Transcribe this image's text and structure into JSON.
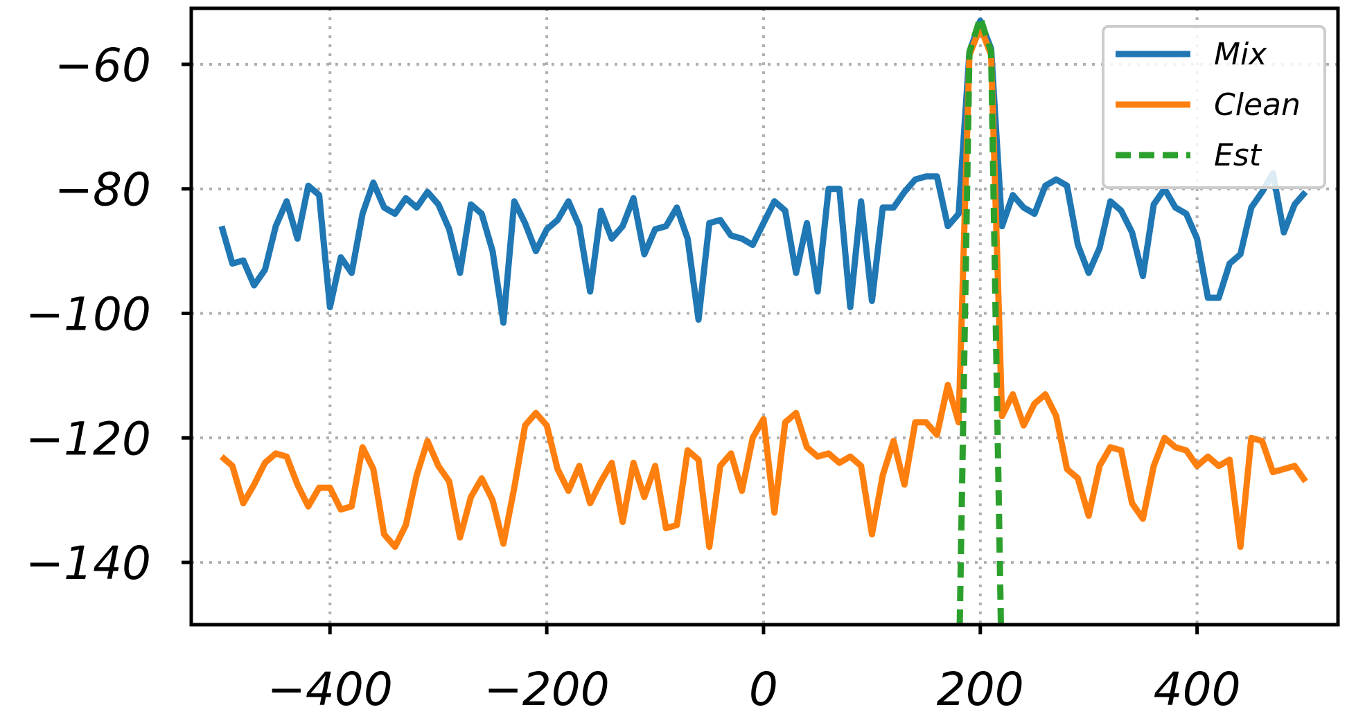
{
  "chart_data": {
    "type": "line",
    "title": "",
    "xlabel": "",
    "ylabel": "",
    "xlim": [
      -528,
      530
    ],
    "ylim": [
      -150,
      -51
    ],
    "xticks": [
      -400,
      -200,
      0,
      200,
      400
    ],
    "yticks": [
      -140,
      -120,
      -100,
      -80,
      -60
    ],
    "grid": true,
    "legend_position": "top-right",
    "x": [
      -500,
      -490,
      -480,
      -470,
      -460,
      -450,
      -440,
      -430,
      -420,
      -410,
      -400,
      -390,
      -380,
      -370,
      -360,
      -350,
      -340,
      -330,
      -320,
      -310,
      -300,
      -290,
      -280,
      -270,
      -260,
      -250,
      -240,
      -230,
      -220,
      -210,
      -200,
      -190,
      -180,
      -170,
      -160,
      -150,
      -140,
      -130,
      -120,
      -110,
      -100,
      -90,
      -80,
      -70,
      -60,
      -50,
      -40,
      -30,
      -20,
      -10,
      0,
      10,
      20,
      30,
      40,
      50,
      60,
      70,
      80,
      90,
      100,
      110,
      120,
      130,
      140,
      150,
      160,
      170,
      180,
      190,
      200,
      210,
      220,
      230,
      240,
      250,
      260,
      270,
      280,
      290,
      300,
      310,
      320,
      330,
      340,
      350,
      360,
      370,
      380,
      390,
      400,
      410,
      420,
      430,
      440,
      450,
      460,
      470,
      480,
      490,
      500
    ],
    "series": [
      {
        "name": "Mix",
        "color": "#1f77b4",
        "style": "solid",
        "values": [
          -86,
          -92,
          -91.5,
          -95.5,
          -93,
          -86,
          -82,
          -88,
          -79.5,
          -81,
          -99,
          -91,
          -93.5,
          -84,
          -79,
          -83,
          -84,
          -81.5,
          -83,
          -80.5,
          -82.5,
          -86.5,
          -93.5,
          -82.5,
          -84,
          -90,
          -101.5,
          -82,
          -85.5,
          -90,
          -86.5,
          -85,
          -82,
          -86,
          -96.5,
          -83.5,
          -88,
          -86,
          -81.5,
          -90.5,
          -86.5,
          -86,
          -83,
          -88,
          -101,
          -85.5,
          -85,
          -87.5,
          -88,
          -89,
          -85.5,
          -82,
          -83.5,
          -93.5,
          -85.5,
          -96.5,
          -80,
          -80,
          -99,
          -82,
          -98,
          -83,
          -83,
          -80.5,
          -78.5,
          -78,
          -78,
          -86,
          -84,
          -58,
          -53,
          -57.5,
          -86,
          -81,
          -83,
          -84,
          -79.5,
          -78.5,
          -79.5,
          -89,
          -93.5,
          -89.5,
          -82,
          -83.5,
          -87,
          -94,
          -82.5,
          -80,
          -83,
          -84,
          -88,
          -97.5,
          -97.5,
          -92,
          -90.5,
          -83,
          -80.5,
          -77.5,
          -87,
          -82.5,
          -80.5
        ]
      },
      {
        "name": "Clean",
        "color": "#ff7f0e",
        "style": "solid",
        "values": [
          -123,
          -124.5,
          -130.5,
          -127.5,
          -124,
          -122.5,
          -123,
          -127.5,
          -131,
          -128,
          -128,
          -131.5,
          -131,
          -121.5,
          -125,
          -135.5,
          -137.5,
          -134,
          -126,
          -120.5,
          -124.5,
          -127,
          -136,
          -129.5,
          -126.5,
          -130,
          -137,
          -128,
          -118,
          -116,
          -118,
          -125,
          -128.5,
          -124.5,
          -130.5,
          -127,
          -124,
          -133.5,
          -124,
          -129.5,
          -124.5,
          -134.5,
          -134,
          -122,
          -123.5,
          -137.5,
          -124.5,
          -122.5,
          -128.5,
          -120,
          -117,
          -132,
          -117.5,
          -116,
          -121.5,
          -123,
          -122.5,
          -124,
          -123,
          -124.5,
          -135.5,
          -126,
          -120.5,
          -127.5,
          -117.5,
          -117.5,
          -119.5,
          -111.5,
          -117.5,
          -58.5,
          -54,
          -58.5,
          -116.5,
          -113,
          -118,
          -114.5,
          -113,
          -116.5,
          -125,
          -126.5,
          -132.5,
          -124.5,
          -121.5,
          -122,
          -130.5,
          -133,
          -124.5,
          -120,
          -121.5,
          -122,
          -124.5,
          -123,
          -124.5,
          -123.5,
          -137.5,
          -120,
          -120.5,
          -125.5,
          -125,
          -124.5,
          -127
        ]
      },
      {
        "name": "Est",
        "color": "#2ca02c",
        "style": "dashed",
        "x": [
          181,
          190,
          200,
          210,
          219
        ],
        "values": [
          -150,
          -58,
          -52.5,
          -58,
          -150
        ]
      }
    ]
  }
}
